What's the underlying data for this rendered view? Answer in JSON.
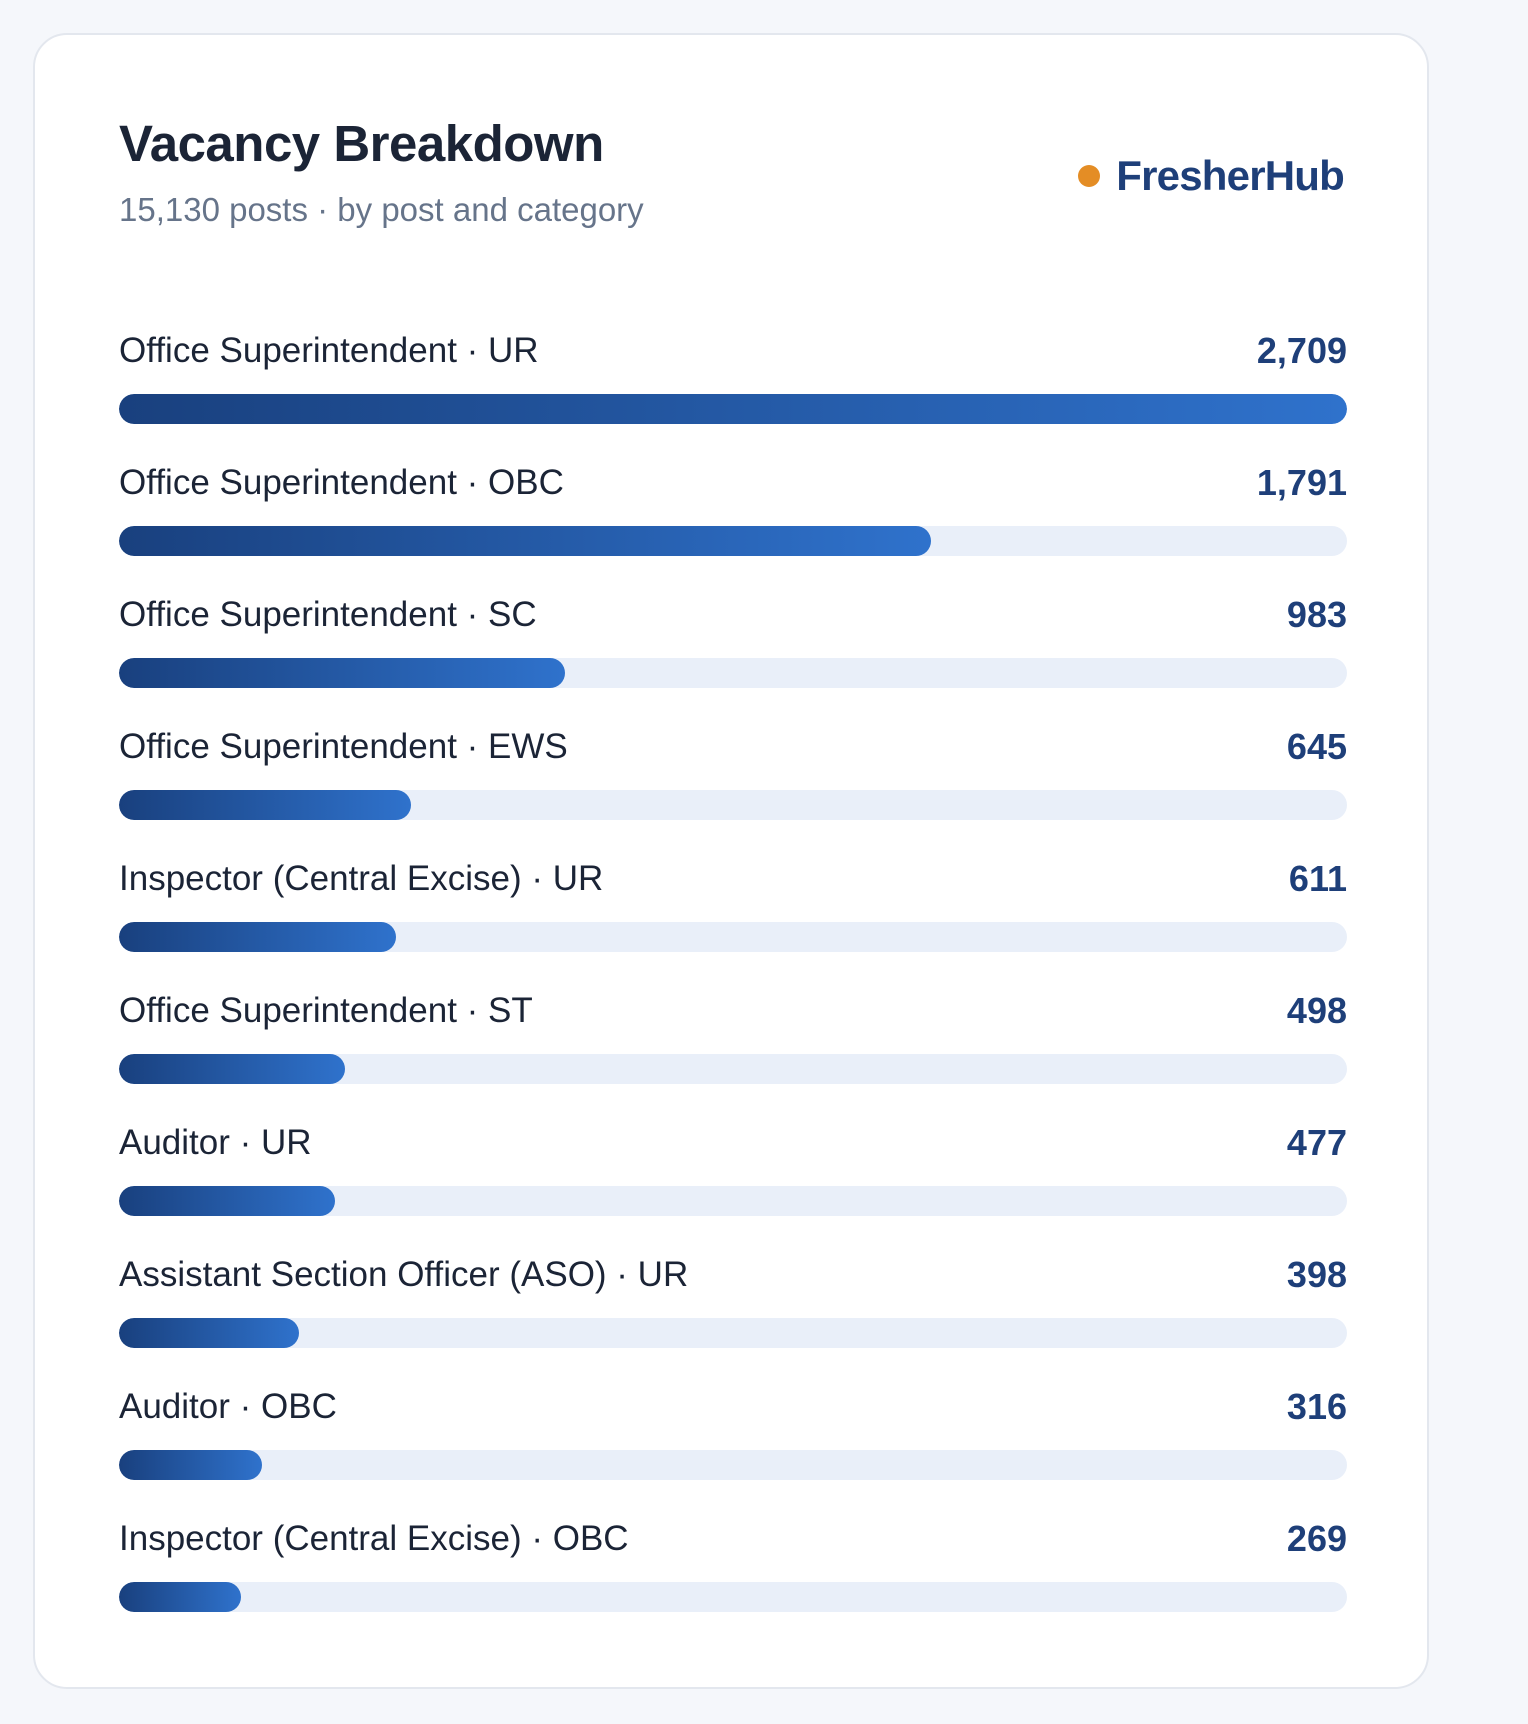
{
  "card": {
    "title": "Vacancy Breakdown",
    "subtitle": "15,130 posts · by post and category",
    "brand": {
      "name": "FresherHub",
      "dot_color": "#e48d25"
    }
  },
  "colors": {
    "bar_start": "#19407e",
    "bar_end": "#2f72cc",
    "track": "#e9eff9",
    "value_text": "#1e3f79"
  },
  "chart_data": {
    "type": "bar",
    "orientation": "horizontal",
    "title": "Vacancy Breakdown",
    "subtitle": "15,130 posts · by post and category",
    "xlim": [
      0,
      2709
    ],
    "grid": false,
    "categories": [
      "Office Superintendent · UR",
      "Office Superintendent · OBC",
      "Office Superintendent · SC",
      "Office Superintendent · EWS",
      "Inspector (Central Excise) · UR",
      "Office Superintendent · ST",
      "Auditor · UR",
      "Assistant Section Officer (ASO) · UR",
      "Auditor · OBC",
      "Inspector (Central Excise) · OBC"
    ],
    "values": [
      2709,
      1791,
      983,
      645,
      611,
      498,
      477,
      398,
      316,
      269
    ],
    "value_labels": [
      "2,709",
      "1,791",
      "983",
      "645",
      "611",
      "498",
      "477",
      "398",
      "316",
      "269"
    ]
  }
}
